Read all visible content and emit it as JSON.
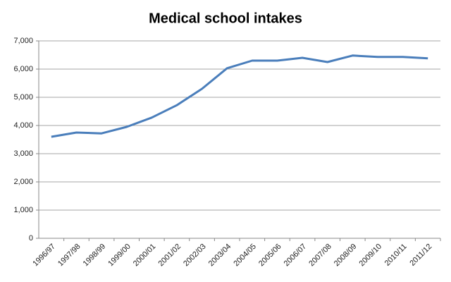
{
  "chart_data": {
    "type": "line",
    "title": "Medical school intakes",
    "categories": [
      "1996/97",
      "1997/98",
      "1998/99",
      "1999/00",
      "2000/01",
      "2001/02",
      "2002/03",
      "2003/04",
      "2004/05",
      "2005/06",
      "2006/07",
      "2007/08",
      "2008/09",
      "2009/10",
      "2010/11",
      "2011/12"
    ],
    "series": [
      {
        "color": "#4a7ebb",
        "values": [
          3600,
          3750,
          3720,
          3950,
          4280,
          4720,
          5300,
          6030,
          6300,
          6300,
          6400,
          6250,
          6480,
          6430,
          6430,
          6380
        ]
      }
    ],
    "ylim": [
      0,
      7000
    ],
    "yticks": [
      0,
      {
        "value": 1000,
        "label": "1,000"
      },
      {
        "value": 2000,
        "label": "2,000"
      },
      {
        "value": 3000,
        "label": "3,000"
      },
      {
        "value": 4000,
        "label": "4,000"
      },
      {
        "value": 5000,
        "label": "5,000"
      },
      {
        "value": 6000,
        "label": "6,000"
      },
      {
        "value": 7000,
        "label": "7,000"
      }
    ],
    "grid": true
  }
}
